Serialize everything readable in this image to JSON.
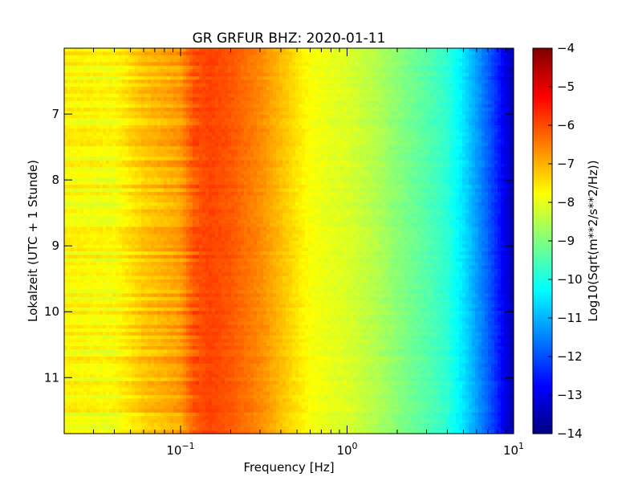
{
  "chart_data": {
    "type": "heatmap",
    "title": "GR GRFUR BHZ: 2020-01-11",
    "xlabel": "Frequency [Hz]",
    "ylabel": "Lokalzeit (UTC + 1 Stunde)",
    "x_scale": "log",
    "xlim": [
      0.02,
      10
    ],
    "x_ticks": [
      {
        "value": 0.1,
        "base": "10",
        "exp": "−1"
      },
      {
        "value": 1,
        "base": "10",
        "exp": "0"
      },
      {
        "value": 10,
        "base": "10",
        "exp": "1"
      }
    ],
    "ylim": [
      6.0,
      11.85
    ],
    "y_inverted": true,
    "y_ticks": [
      "7",
      "8",
      "9",
      "10",
      "11"
    ],
    "colorbar": {
      "label": "Log10(Sqrt(m**2/s**2/Hz))",
      "range": [
        -14,
        -4
      ],
      "ticks": [
        "−4",
        "−5",
        "−6",
        "−7",
        "−8",
        "−9",
        "−10",
        "−11",
        "−12",
        "−13",
        "−14"
      ],
      "colormap": "jet"
    },
    "spectrum_profile": {
      "frequency_hz": [
        0.02,
        0.04,
        0.06,
        0.08,
        0.1,
        0.12,
        0.15,
        0.2,
        0.3,
        0.4,
        0.5,
        0.6,
        0.8,
        1.0,
        1.5,
        2.0,
        3.0,
        4.0,
        5.0,
        6.0,
        7.0,
        8.0,
        9.0,
        10.0
      ],
      "log10_amplitude": [
        -7.7,
        -7.8,
        -7.2,
        -7.0,
        -6.8,
        -6.1,
        -5.9,
        -6.1,
        -6.6,
        -7.1,
        -7.5,
        -7.8,
        -8.0,
        -8.1,
        -8.5,
        -8.9,
        -9.4,
        -9.8,
        -10.5,
        -11.2,
        -11.8,
        -12.4,
        -13.0,
        -13.6
      ]
    }
  }
}
